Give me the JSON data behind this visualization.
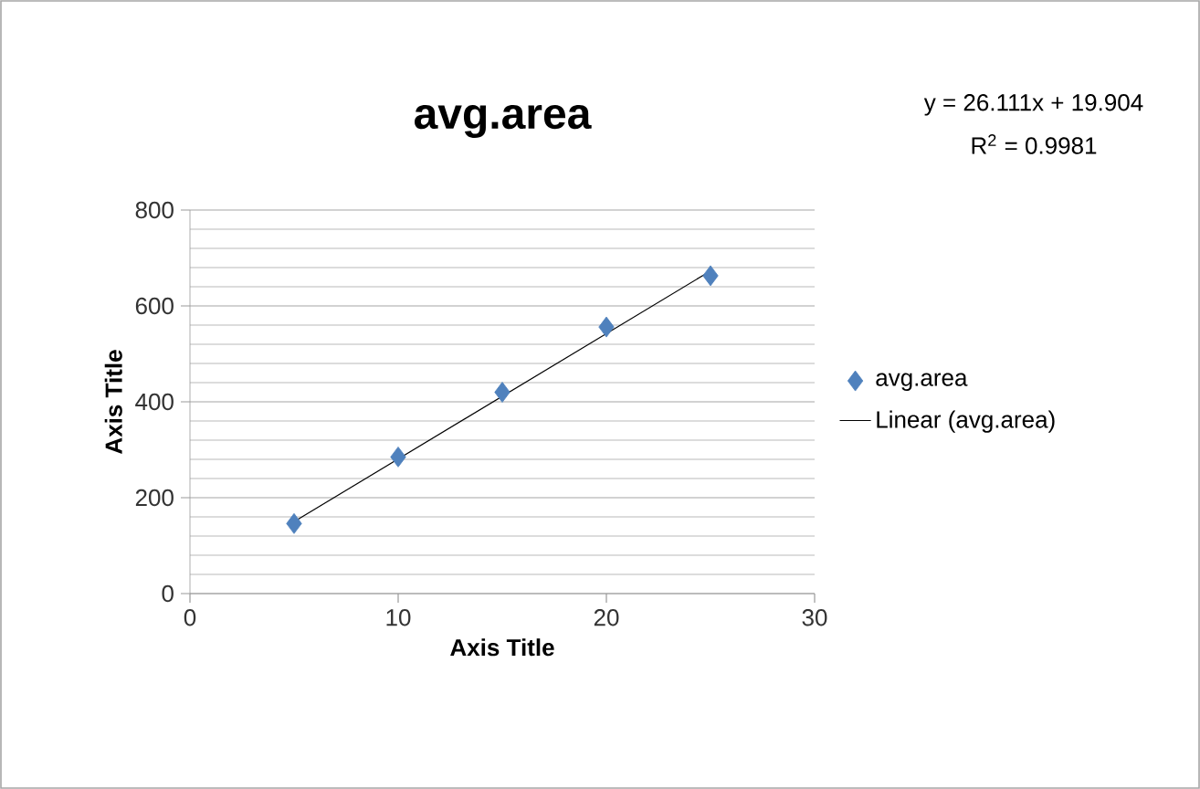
{
  "chart_data": {
    "type": "scatter",
    "title": "avg.area",
    "xlabel": "Axis Title",
    "ylabel": "Axis Title",
    "annotations": [
      "y = 26.111x + 19.904",
      "R$^{2}$ = 0.9981"
    ],
    "xlim": [
      0,
      30
    ],
    "xticks": [
      0,
      10,
      20,
      30
    ],
    "ylim": [
      0,
      800
    ],
    "yticks": [
      0,
      200,
      400,
      600,
      800
    ],
    "grid": "y",
    "legend": "right",
    "series": [
      {
        "name": "avg.area",
        "marker": "diamond",
        "color": "#4f81bd",
        "x": [
          5,
          10,
          15,
          20,
          25
        ],
        "values": [
          146,
          285,
          420,
          556,
          663
        ]
      },
      {
        "name": "Linear (avg.area)",
        "type": "line",
        "marker": "none",
        "color": "#000000",
        "x": [
          5,
          25
        ],
        "values": [
          150,
          673
        ]
      }
    ]
  }
}
